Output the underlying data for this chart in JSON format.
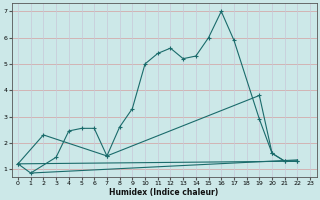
{
  "xlabel": "Humidex (Indice chaleur)",
  "bg_color": "#cce8e8",
  "grid_color_h": "#d4a0a0",
  "grid_color_v": "#c8c8d8",
  "line_color": "#1a6b6b",
  "xlim": [
    -0.5,
    23.5
  ],
  "ylim": [
    0.7,
    7.3
  ],
  "xticks": [
    0,
    1,
    2,
    3,
    4,
    5,
    6,
    7,
    8,
    9,
    10,
    11,
    12,
    13,
    14,
    15,
    16,
    17,
    18,
    19,
    20,
    21,
    22,
    23
  ],
  "yticks": [
    1,
    2,
    3,
    4,
    5,
    6,
    7
  ],
  "line1_x": [
    0,
    2,
    7,
    8,
    9,
    10,
    11,
    12,
    13,
    14,
    15,
    16,
    17,
    19,
    20,
    21,
    22
  ],
  "line1_y": [
    1.2,
    2.3,
    1.5,
    2.6,
    3.3,
    5.0,
    5.4,
    5.6,
    5.2,
    5.3,
    6.0,
    7.0,
    5.9,
    2.9,
    1.6,
    1.3,
    1.3
  ],
  "line2_x": [
    0,
    1,
    3,
    4,
    5,
    6,
    7,
    19,
    20,
    21,
    22
  ],
  "line2_y": [
    1.2,
    0.85,
    1.45,
    2.45,
    2.55,
    2.55,
    1.5,
    3.8,
    1.6,
    1.3,
    1.3
  ],
  "line3_x": [
    0,
    22
  ],
  "line3_y": [
    1.2,
    1.3
  ],
  "line4_x": [
    1,
    22
  ],
  "line4_y": [
    0.85,
    1.35
  ],
  "xlabel_fontsize": 5.5,
  "tick_fontsize": 4.5
}
